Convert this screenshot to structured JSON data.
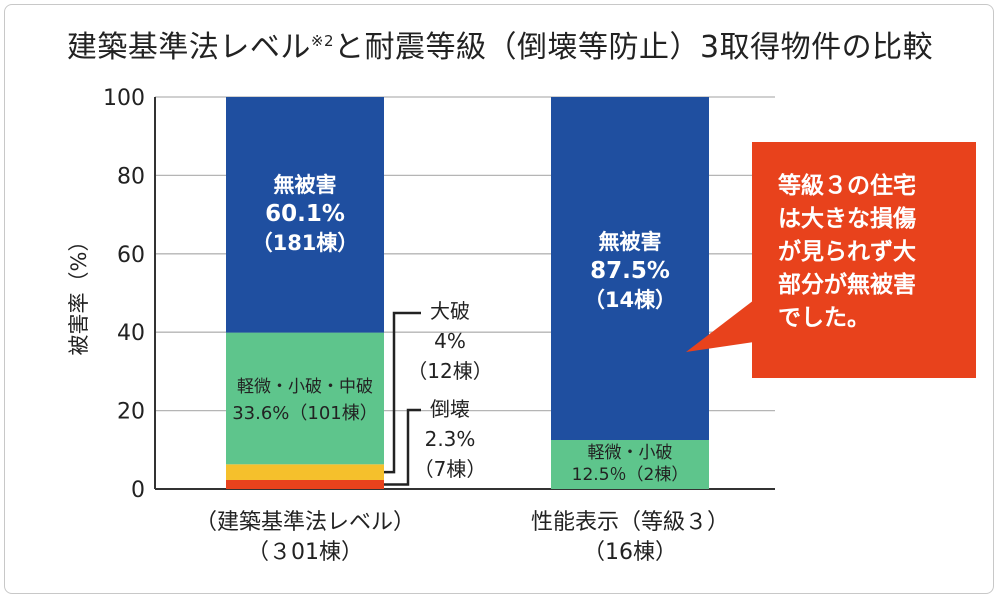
{
  "title": {
    "text": "建築基準法レベル",
    "sup": "※2",
    "rest": "と耐震等級（倒壊等防止）3取得物件の比較"
  },
  "callout": {
    "text": "等級３の住宅\nは大きな損傷\nが見られず大\n部分が無被害\nでした。"
  },
  "colors": {
    "none": "#1f4fa0",
    "minor": "#5ec58c",
    "major": "#f5c02c",
    "collapse": "#e8421c",
    "grid": "#b5b5b5"
  },
  "chart_data": {
    "type": "bar",
    "stacked": true,
    "ylabel": "被害率（%）",
    "ylim": [
      0,
      100
    ],
    "yticks": [
      "0",
      "20",
      "40",
      "60",
      "80",
      "100"
    ],
    "categories": [
      {
        "line1": "（建築基準法レベル）",
        "line2": "（３01棟）"
      },
      {
        "line1": "性能表示（等級３）",
        "line2": "（16棟）"
      }
    ],
    "series": [
      {
        "key": "collapse",
        "values": [
          2.3,
          0
        ]
      },
      {
        "key": "major",
        "values": [
          4,
          0
        ]
      },
      {
        "key": "minor",
        "values": [
          33.6,
          12.5
        ]
      },
      {
        "key": "none",
        "values": [
          60.1,
          87.5
        ]
      }
    ],
    "labels": {
      "bar1_none": [
        "無被害",
        "60.1%",
        "（181棟）"
      ],
      "bar1_minor": [
        "軽微・小破・中破",
        "33.6%（101棟）"
      ],
      "bar1_major": [
        "大破",
        "4%",
        "（12棟）"
      ],
      "bar1_collapse": [
        "倒壊",
        "2.3%",
        "（7棟）"
      ],
      "bar2_none": [
        "無被害",
        "87.5%",
        "（14棟）"
      ],
      "bar2_minor": [
        "軽微・小破",
        "12.5％（2棟）"
      ]
    }
  }
}
